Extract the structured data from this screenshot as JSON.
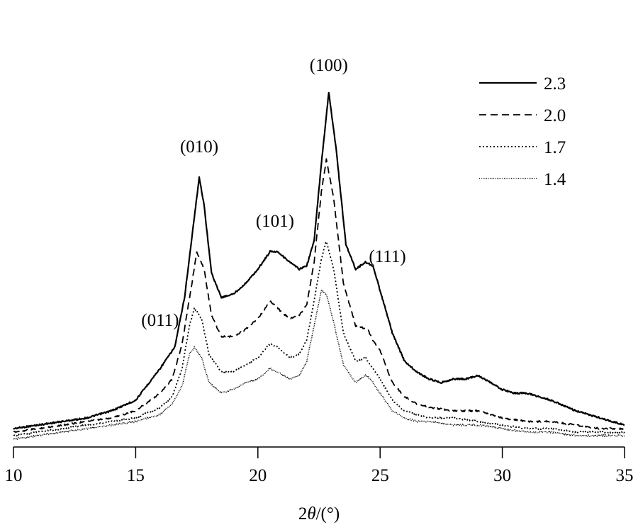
{
  "chart_data": {
    "type": "line",
    "title": "",
    "xlabel_parts": {
      "prefix": "2",
      "symbol": "θ",
      "suffix": "/(°)"
    },
    "ylabel": "",
    "xlim": [
      10,
      35
    ],
    "x_ticks": [
      10,
      15,
      20,
      25,
      30,
      35
    ],
    "y_axis_shown": false,
    "grid": false,
    "legend_position": "top-right",
    "peak_annotations": [
      {
        "text": "(011)",
        "x": 16.0,
        "y": 30
      },
      {
        "text": "(010)",
        "x": 17.6,
        "y": 79
      },
      {
        "text": "(101)",
        "x": 20.7,
        "y": 58
      },
      {
        "text": "(100)",
        "x": 22.9,
        "y": 102
      },
      {
        "text": "(111)",
        "x": 25.3,
        "y": 48
      }
    ],
    "series": [
      {
        "name": "2.3",
        "style": "solid",
        "points": [
          [
            10,
            1
          ],
          [
            11,
            2
          ],
          [
            12,
            3
          ],
          [
            13,
            4
          ],
          [
            14,
            6
          ],
          [
            15,
            9
          ],
          [
            16,
            18
          ],
          [
            16.6,
            24
          ],
          [
            17.0,
            38
          ],
          [
            17.3,
            55
          ],
          [
            17.6,
            72
          ],
          [
            17.8,
            64
          ],
          [
            18.1,
            45
          ],
          [
            18.5,
            38
          ],
          [
            19.0,
            39
          ],
          [
            19.5,
            42
          ],
          [
            20.0,
            46
          ],
          [
            20.5,
            51
          ],
          [
            20.8,
            51
          ],
          [
            21.3,
            48
          ],
          [
            21.7,
            46
          ],
          [
            22.0,
            47
          ],
          [
            22.3,
            54
          ],
          [
            22.6,
            76
          ],
          [
            22.9,
            96
          ],
          [
            23.2,
            80
          ],
          [
            23.6,
            53
          ],
          [
            24.0,
            46
          ],
          [
            24.4,
            48
          ],
          [
            24.7,
            47
          ],
          [
            25.0,
            40
          ],
          [
            25.5,
            28
          ],
          [
            26.0,
            20
          ],
          [
            26.5,
            17
          ],
          [
            27.0,
            15
          ],
          [
            27.5,
            14
          ],
          [
            28.0,
            15
          ],
          [
            28.5,
            15
          ],
          [
            29.0,
            16
          ],
          [
            29.5,
            14
          ],
          [
            30.0,
            12
          ],
          [
            30.5,
            11
          ],
          [
            31.0,
            11
          ],
          [
            32.0,
            9
          ],
          [
            33.0,
            6
          ],
          [
            34.0,
            4
          ],
          [
            35.0,
            2
          ]
        ]
      },
      {
        "name": "2.0",
        "style": "dashed",
        "points": [
          [
            10,
            0
          ],
          [
            11,
            1
          ],
          [
            12,
            2
          ],
          [
            13,
            3
          ],
          [
            14,
            4
          ],
          [
            15,
            6
          ],
          [
            16,
            11
          ],
          [
            16.5,
            15
          ],
          [
            16.9,
            25
          ],
          [
            17.3,
            42
          ],
          [
            17.5,
            51
          ],
          [
            17.8,
            46
          ],
          [
            18.1,
            33
          ],
          [
            18.5,
            27
          ],
          [
            19.0,
            27
          ],
          [
            19.5,
            29
          ],
          [
            20.0,
            32
          ],
          [
            20.5,
            37
          ],
          [
            20.8,
            35
          ],
          [
            21.3,
            32
          ],
          [
            21.7,
            33
          ],
          [
            22.0,
            36
          ],
          [
            22.3,
            48
          ],
          [
            22.6,
            68
          ],
          [
            22.8,
            77
          ],
          [
            23.1,
            66
          ],
          [
            23.5,
            42
          ],
          [
            24.0,
            30
          ],
          [
            24.5,
            29
          ],
          [
            24.7,
            26
          ],
          [
            25.0,
            23
          ],
          [
            25.5,
            14
          ],
          [
            26.0,
            10
          ],
          [
            26.5,
            8
          ],
          [
            27.0,
            7
          ],
          [
            28.0,
            6
          ],
          [
            29.0,
            6
          ],
          [
            30.0,
            4
          ],
          [
            31.0,
            3
          ],
          [
            32.0,
            3
          ],
          [
            33.0,
            2
          ],
          [
            34.0,
            1
          ],
          [
            35.0,
            1
          ]
        ]
      },
      {
        "name": "1.7",
        "style": "dotted",
        "points": [
          [
            10,
            -1
          ],
          [
            11,
            0
          ],
          [
            12,
            1
          ],
          [
            13,
            2
          ],
          [
            14,
            3
          ],
          [
            15,
            4
          ],
          [
            16,
            7
          ],
          [
            16.5,
            10
          ],
          [
            16.9,
            18
          ],
          [
            17.2,
            30
          ],
          [
            17.4,
            35
          ],
          [
            17.7,
            32
          ],
          [
            18.0,
            22
          ],
          [
            18.5,
            17
          ],
          [
            19.0,
            17
          ],
          [
            19.5,
            19
          ],
          [
            20.0,
            21
          ],
          [
            20.5,
            25
          ],
          [
            20.8,
            24
          ],
          [
            21.3,
            21
          ],
          [
            21.7,
            22
          ],
          [
            22.0,
            26
          ],
          [
            22.3,
            37
          ],
          [
            22.6,
            49
          ],
          [
            22.8,
            54
          ],
          [
            23.1,
            46
          ],
          [
            23.5,
            28
          ],
          [
            24.0,
            20
          ],
          [
            24.4,
            21
          ],
          [
            24.6,
            19
          ],
          [
            25.0,
            15
          ],
          [
            25.5,
            9
          ],
          [
            26.0,
            6
          ],
          [
            26.5,
            5
          ],
          [
            27.0,
            4
          ],
          [
            28.0,
            4
          ],
          [
            29.0,
            3
          ],
          [
            30.0,
            2
          ],
          [
            31.0,
            1
          ],
          [
            32.0,
            1
          ],
          [
            33.0,
            0
          ],
          [
            34.0,
            0
          ],
          [
            35.0,
            0
          ]
        ]
      },
      {
        "name": "1.4",
        "style": "dotted-fine",
        "points": [
          [
            10,
            -2
          ],
          [
            11,
            -1
          ],
          [
            12,
            0
          ],
          [
            13,
            1
          ],
          [
            14,
            2
          ],
          [
            15,
            3
          ],
          [
            16,
            5
          ],
          [
            16.5,
            8
          ],
          [
            16.9,
            13
          ],
          [
            17.2,
            22
          ],
          [
            17.4,
            24
          ],
          [
            17.7,
            21
          ],
          [
            18.0,
            14
          ],
          [
            18.5,
            11
          ],
          [
            19.0,
            12
          ],
          [
            19.5,
            14
          ],
          [
            20.0,
            15
          ],
          [
            20.5,
            18
          ],
          [
            20.8,
            17
          ],
          [
            21.3,
            15
          ],
          [
            21.7,
            16
          ],
          [
            22.0,
            20
          ],
          [
            22.3,
            30
          ],
          [
            22.6,
            40
          ],
          [
            22.8,
            39
          ],
          [
            23.1,
            31
          ],
          [
            23.5,
            19
          ],
          [
            24.0,
            14
          ],
          [
            24.4,
            16
          ],
          [
            24.6,
            15
          ],
          [
            25.0,
            11
          ],
          [
            25.5,
            6
          ],
          [
            26.0,
            4
          ],
          [
            26.5,
            3
          ],
          [
            27.0,
            3
          ],
          [
            28.0,
            2
          ],
          [
            29.0,
            2
          ],
          [
            30.0,
            1
          ],
          [
            31.0,
            0
          ],
          [
            32.0,
            0
          ],
          [
            33.0,
            -1
          ],
          [
            34.0,
            -1
          ],
          [
            35.0,
            -1
          ]
        ]
      }
    ]
  }
}
